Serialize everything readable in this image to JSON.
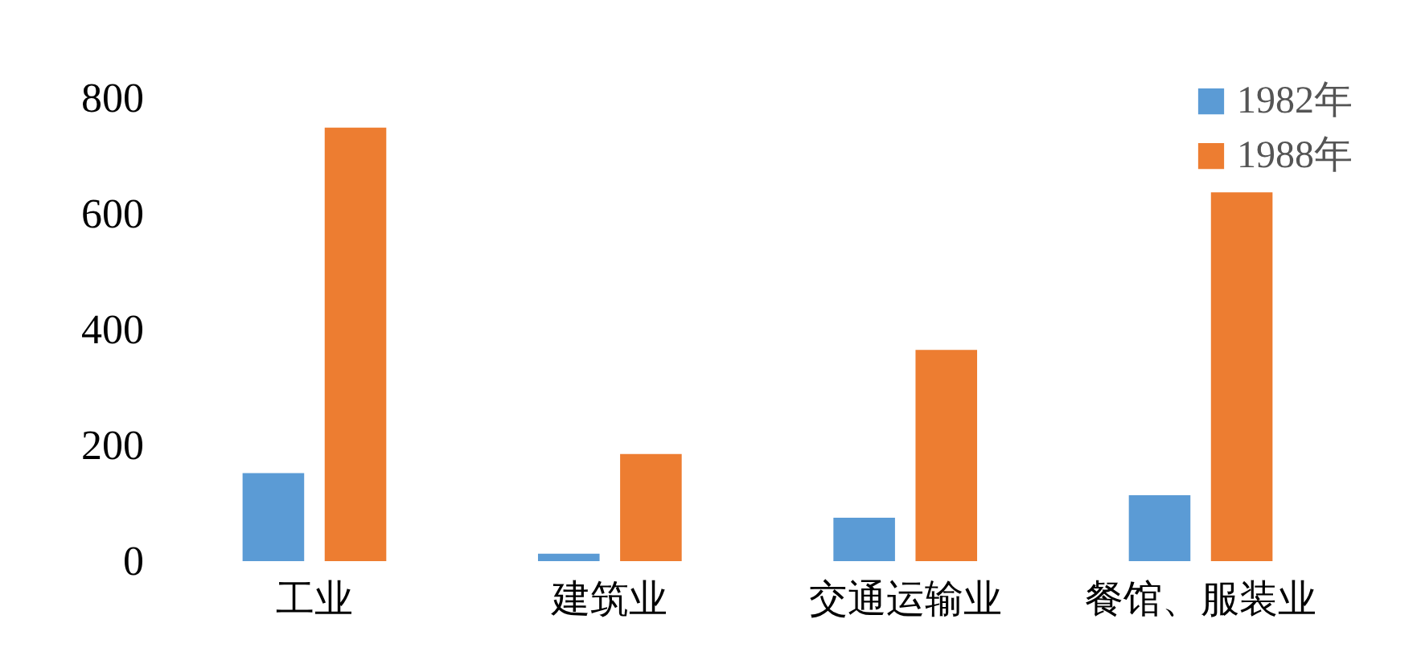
{
  "chart_data": {
    "type": "bar",
    "categories": [
      "工业",
      "建筑业",
      "交通运输业",
      "餐馆、服装业"
    ],
    "series": [
      {
        "name": "1982年",
        "color": "#5b9bd5",
        "values": [
          152,
          13,
          75,
          114
        ]
      },
      {
        "name": "1988年",
        "color": "#ed7d31",
        "values": [
          749,
          185,
          365,
          637
        ]
      }
    ],
    "ylim": [
      0,
      800
    ],
    "yticks": [
      0,
      200,
      400,
      600,
      800
    ],
    "grid": false,
    "legend": "top right"
  }
}
